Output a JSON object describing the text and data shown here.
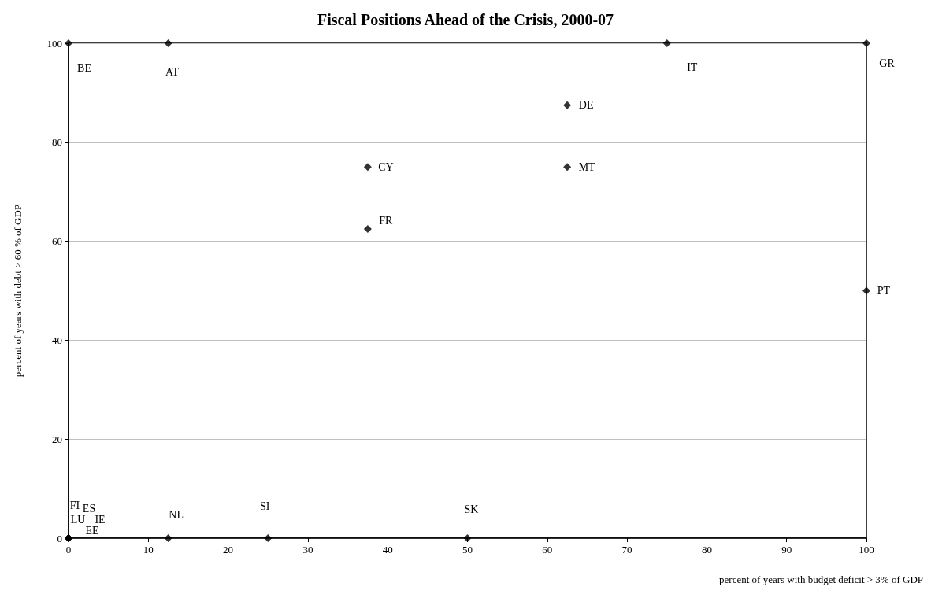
{
  "chart_data": {
    "type": "scatter",
    "title": "Fiscal Positions Ahead of the Crisis, 2000-07",
    "xlabel": "percent of years with budget deficit > 3% of GDP",
    "ylabel": "percent of years with debt > 60 % of GDP",
    "x": [
      0,
      12.5,
      75,
      100,
      62.5,
      37.5,
      62.5,
      37.5,
      100,
      0,
      0,
      0,
      0,
      0,
      12.5,
      25,
      50
    ],
    "values": [
      100,
      100,
      100,
      100,
      87.5,
      75,
      75,
      62.5,
      50,
      0,
      0,
      0,
      0,
      0,
      0,
      0,
      0
    ],
    "color": "#000000",
    "marker": "diamond",
    "xlim": [
      0,
      100
    ],
    "xticks": [
      0,
      10,
      20,
      30,
      40,
      50,
      60,
      70,
      80,
      90,
      100
    ],
    "ylim": [
      0,
      100
    ],
    "yticks": [
      0,
      20,
      40,
      60,
      80,
      100
    ],
    "grid": "y",
    "annotations": [
      {
        "text": "BE",
        "x": 0,
        "y": 100
      },
      {
        "text": "AT",
        "x": 12.5,
        "y": 100
      },
      {
        "text": "IT",
        "x": 75,
        "y": 100
      },
      {
        "text": "GR",
        "x": 100,
        "y": 100
      },
      {
        "text": "DE",
        "x": 62.5,
        "y": 87.5
      },
      {
        "text": "CY",
        "x": 37.5,
        "y": 75
      },
      {
        "text": "MT",
        "x": 62.5,
        "y": 75
      },
      {
        "text": "FR",
        "x": 37.5,
        "y": 62.5
      },
      {
        "text": "PT",
        "x": 100,
        "y": 50
      },
      {
        "text": "FI",
        "x": 0,
        "y": 0
      },
      {
        "text": "ES",
        "x": 0,
        "y": 0
      },
      {
        "text": "LU",
        "x": 0,
        "y": 0
      },
      {
        "text": "IE",
        "x": 0,
        "y": 0
      },
      {
        "text": "EE",
        "x": 0,
        "y": 0
      },
      {
        "text": "NL",
        "x": 12.5,
        "y": 0
      },
      {
        "text": "SI",
        "x": 25,
        "y": 0
      },
      {
        "text": "SK",
        "x": 50,
        "y": 0
      }
    ]
  }
}
